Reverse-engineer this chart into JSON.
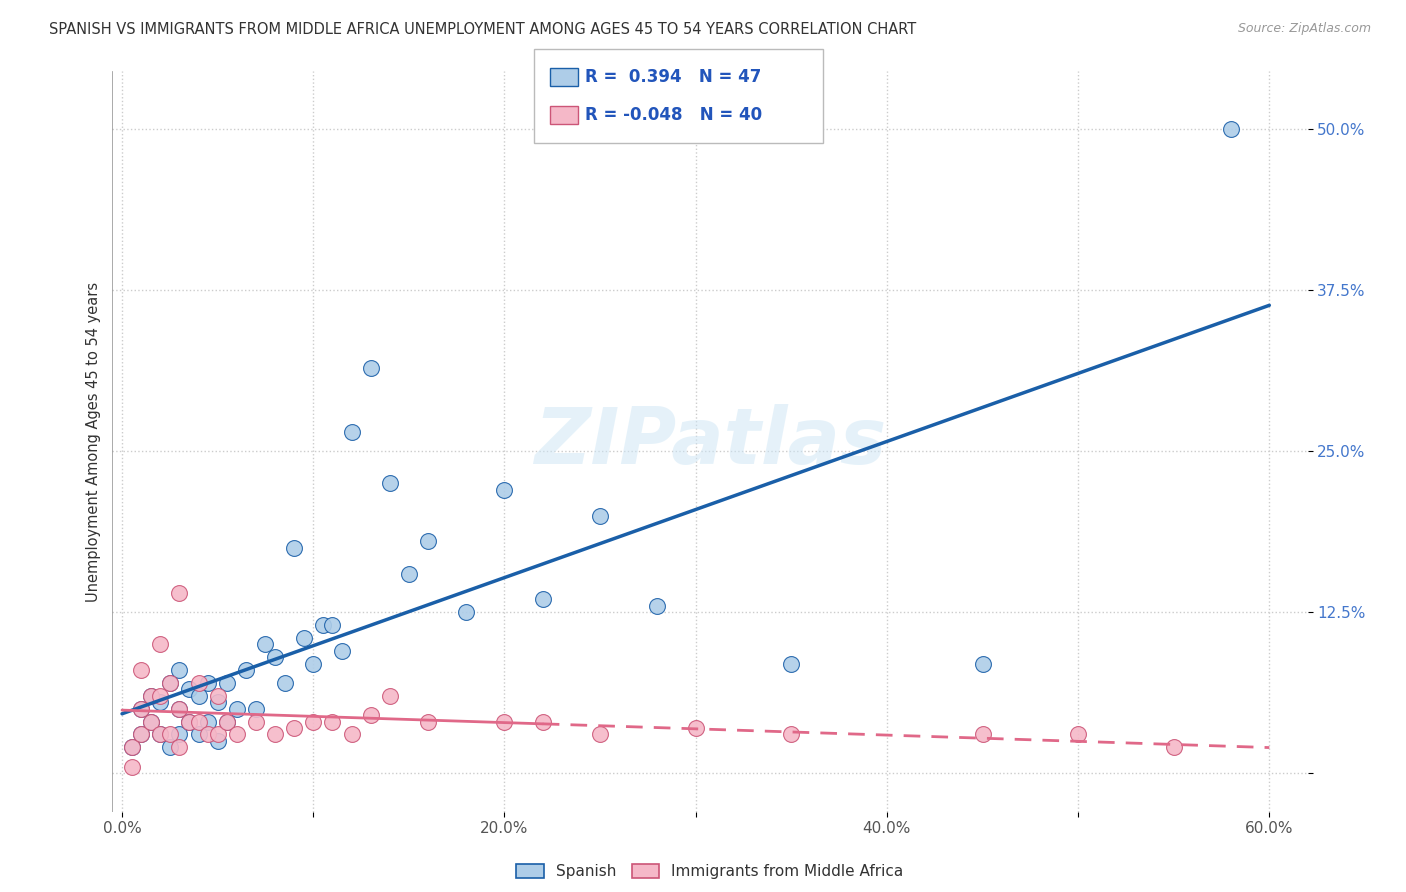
{
  "title": "SPANISH VS IMMIGRANTS FROM MIDDLE AFRICA UNEMPLOYMENT AMONG AGES 45 TO 54 YEARS CORRELATION CHART",
  "source": "Source: ZipAtlas.com",
  "ylabel": "Unemployment Among Ages 45 to 54 years",
  "xlim": [
    -0.005,
    0.62
  ],
  "ylim": [
    -0.03,
    0.545
  ],
  "xticks": [
    0.0,
    0.1,
    0.2,
    0.3,
    0.4,
    0.5,
    0.6
  ],
  "xticklabels": [
    "0.0%",
    "",
    "20.0%",
    "",
    "40.0%",
    "",
    "60.0%"
  ],
  "yticks": [
    0.0,
    0.125,
    0.25,
    0.375,
    0.5
  ],
  "yticklabels": [
    "",
    "12.5%",
    "25.0%",
    "37.5%",
    "50.0%"
  ],
  "spanish_R": 0.394,
  "spanish_N": 47,
  "immigrant_R": -0.048,
  "immigrant_N": 40,
  "spanish_color": "#aecde8",
  "immigrant_color": "#f5b8c8",
  "trend_spanish_color": "#1a5fa8",
  "trend_immigrant_color": "#e06888",
  "spanish_x": [
    0.005,
    0.01,
    0.01,
    0.015,
    0.015,
    0.02,
    0.02,
    0.025,
    0.025,
    0.03,
    0.03,
    0.03,
    0.035,
    0.035,
    0.04,
    0.04,
    0.045,
    0.045,
    0.05,
    0.05,
    0.055,
    0.055,
    0.06,
    0.065,
    0.07,
    0.075,
    0.08,
    0.085,
    0.09,
    0.095,
    0.1,
    0.105,
    0.11,
    0.115,
    0.12,
    0.13,
    0.14,
    0.15,
    0.16,
    0.18,
    0.2,
    0.22,
    0.25,
    0.28,
    0.35,
    0.45,
    0.58
  ],
  "spanish_y": [
    0.02,
    0.03,
    0.05,
    0.04,
    0.06,
    0.03,
    0.055,
    0.02,
    0.07,
    0.03,
    0.05,
    0.08,
    0.04,
    0.065,
    0.03,
    0.06,
    0.04,
    0.07,
    0.025,
    0.055,
    0.04,
    0.07,
    0.05,
    0.08,
    0.05,
    0.1,
    0.09,
    0.07,
    0.175,
    0.105,
    0.085,
    0.115,
    0.115,
    0.095,
    0.265,
    0.315,
    0.225,
    0.155,
    0.18,
    0.125,
    0.22,
    0.135,
    0.2,
    0.13,
    0.085,
    0.085,
    0.5
  ],
  "immigrant_x": [
    0.005,
    0.005,
    0.01,
    0.01,
    0.01,
    0.015,
    0.015,
    0.02,
    0.02,
    0.02,
    0.025,
    0.025,
    0.03,
    0.03,
    0.03,
    0.035,
    0.04,
    0.04,
    0.045,
    0.05,
    0.05,
    0.055,
    0.06,
    0.07,
    0.08,
    0.09,
    0.1,
    0.11,
    0.12,
    0.13,
    0.14,
    0.16,
    0.2,
    0.22,
    0.25,
    0.3,
    0.35,
    0.45,
    0.5,
    0.55
  ],
  "immigrant_y": [
    0.005,
    0.02,
    0.03,
    0.05,
    0.08,
    0.04,
    0.06,
    0.03,
    0.06,
    0.1,
    0.03,
    0.07,
    0.02,
    0.05,
    0.14,
    0.04,
    0.04,
    0.07,
    0.03,
    0.03,
    0.06,
    0.04,
    0.03,
    0.04,
    0.03,
    0.035,
    0.04,
    0.04,
    0.03,
    0.045,
    0.06,
    0.04,
    0.04,
    0.04,
    0.03,
    0.035,
    0.03,
    0.03,
    0.03,
    0.02
  ],
  "watermark": "ZIPatlas",
  "legend_bottom_spanish": "Spanish",
  "legend_bottom_immigrant": "Immigrants from Middle Africa"
}
